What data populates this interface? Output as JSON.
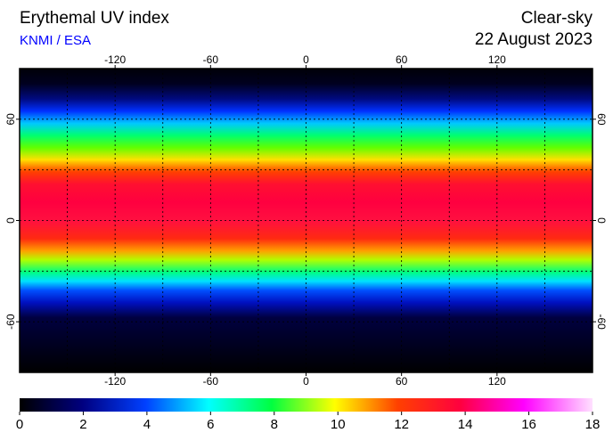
{
  "header": {
    "title": "Erythemal UV index",
    "source": "KNMI / ESA",
    "condition": "Clear-sky",
    "date": "22 August 2023"
  },
  "map": {
    "xlim": [
      -180,
      180
    ],
    "ylim": [
      -90,
      90
    ],
    "xticks": [
      -120,
      -60,
      0,
      60,
      120
    ],
    "yticks": [
      -60,
      0,
      60
    ],
    "lon_gridlines": [
      -150,
      -120,
      -90,
      -60,
      -30,
      0,
      30,
      60,
      90,
      120,
      150
    ],
    "lat_gridlines": [
      -60,
      -30,
      0,
      30,
      60
    ]
  },
  "colorbar": {
    "lim": [
      0,
      18
    ],
    "ticks": [
      0,
      2,
      4,
      6,
      8,
      10,
      12,
      14,
      16,
      18
    ]
  }
}
